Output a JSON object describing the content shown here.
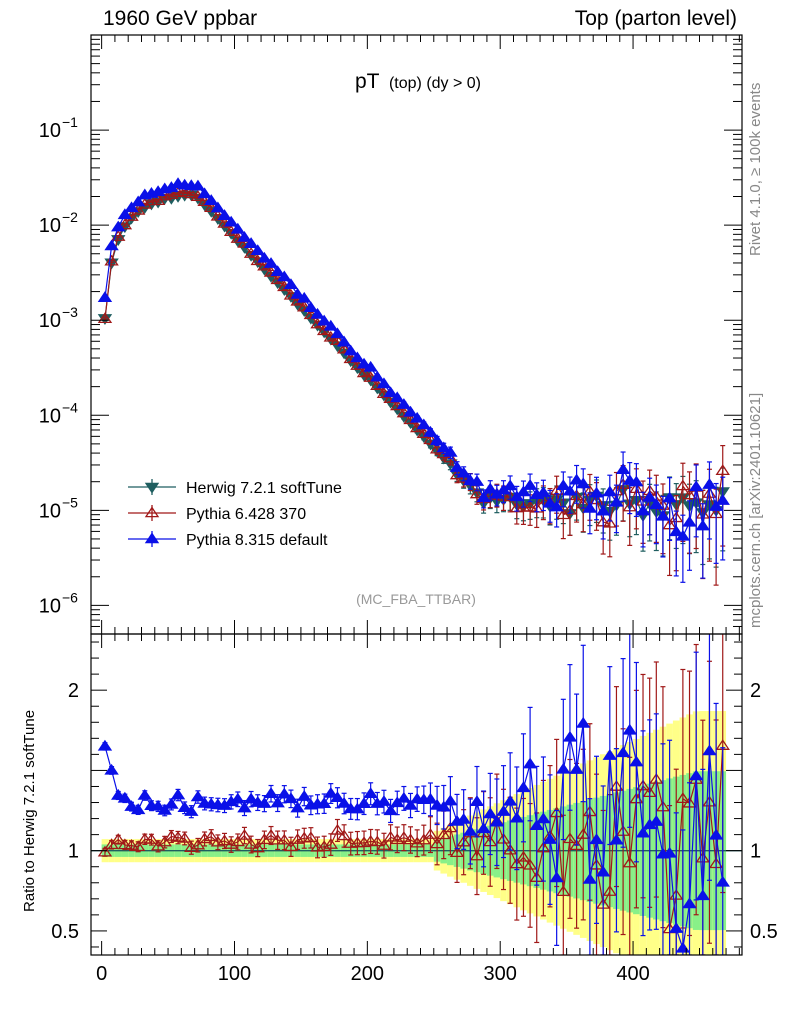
{
  "header": {
    "left": "1960 GeV ppbar",
    "right": "Top (parton level)"
  },
  "side_labels": {
    "upper": "Rivet 4.1.0, ≥ 100k events",
    "lower": "mcplots.cern.ch [arXiv:2401.10621]"
  },
  "analysis_tag": "(MC_FBA_TTBAR)",
  "chart_data": {
    "type": "scatter",
    "title": {
      "main": "pT",
      "sub": "(top) (dy > 0)"
    },
    "xlabel": "",
    "xlim": [
      -8,
      482
    ],
    "x_ticks": [
      0,
      100,
      200,
      300,
      400
    ],
    "colors": {
      "herwig": "#1f5e60",
      "py6": "#a01818",
      "py8": "#0a10e8",
      "band_inner": "#88f088",
      "band_outer": "#ffff88"
    },
    "main_panel": {
      "yscale": "log",
      "ylim": [
        5e-07,
        1.0
      ],
      "y_ticks": [
        {
          "base": "10",
          "exp": "−1",
          "value": 0.1
        },
        {
          "base": "10",
          "exp": "−2",
          "value": 0.01
        },
        {
          "base": "10",
          "exp": "−3",
          "value": 0.001
        },
        {
          "base": "10",
          "exp": "−4",
          "value": 0.0001
        },
        {
          "base": "10",
          "exp": "−5",
          "value": 1e-05
        },
        {
          "base": "10",
          "exp": "−6",
          "value": 1e-06
        }
      ]
    },
    "ratio_panel": {
      "ylabel": "Ratio to Herwig 7.2.1 softTune",
      "ylim": [
        0.35,
        2.35
      ],
      "y_ticks": [
        {
          "label": "2",
          "value": 2
        },
        {
          "label": "1",
          "value": 1
        },
        {
          "label": "0.5",
          "value": 0.5
        }
      ],
      "reference": 1
    },
    "legend_position": "lower-left",
    "series": [
      {
        "name": "Herwig 7.2.1 softTune",
        "key": "herwig",
        "marker": "triangle-down-filled"
      },
      {
        "name": "Pythia 6.428 370",
        "key": "py6",
        "marker": "triangle-up-open"
      },
      {
        "name": "Pythia 8.315 default",
        "key": "py8",
        "marker": "triangle-up-filled"
      }
    ],
    "generation": {
      "x_start": 2.5,
      "x_step": 5,
      "n_points": 94,
      "herwig_shape": {
        "rise_scale": 55,
        "mode_x": 70,
        "peak": 0.021,
        "decay_per_10": 0.1
      },
      "py6_ratio_nominal": 1.06,
      "py8_ratio_nominal": 1.3,
      "py8_first_ratio": 1.65
    }
  }
}
